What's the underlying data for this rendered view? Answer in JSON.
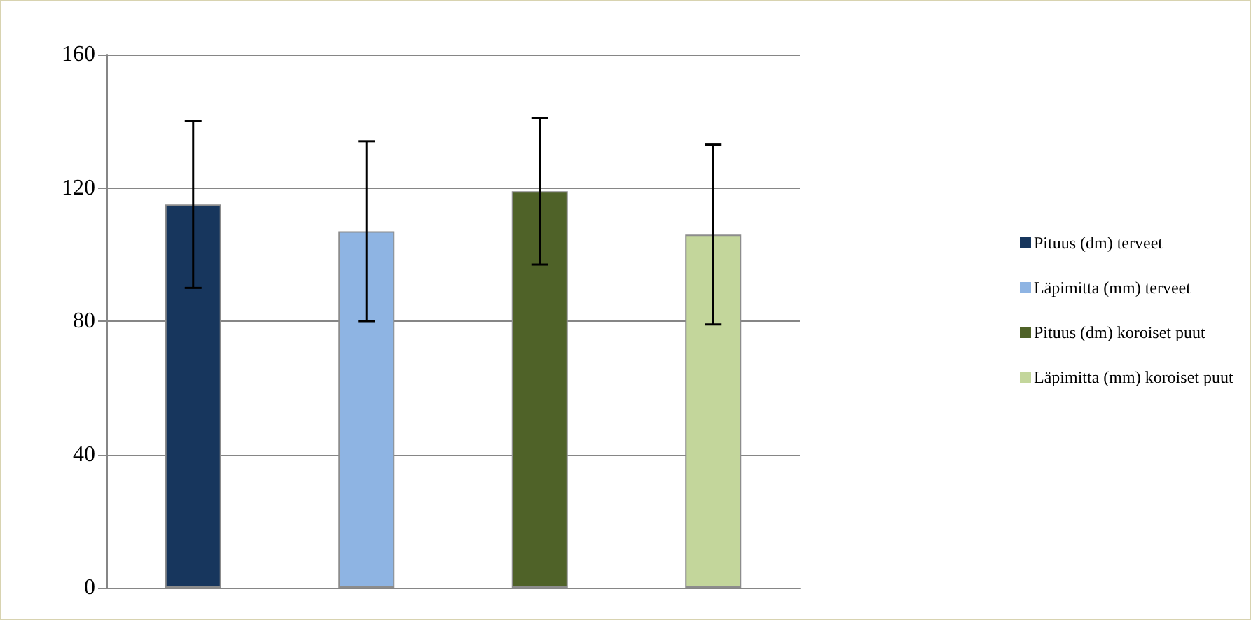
{
  "chart_data": {
    "type": "bar",
    "categories": [
      null
    ],
    "series": [
      {
        "name": "Pituus (dm) terveet",
        "color": "#17365d",
        "values": [
          115
        ],
        "errors": [
          [
            90,
            140
          ]
        ]
      },
      {
        "name": "Läpimitta (mm) terveet",
        "color": "#8eb4e3",
        "values": [
          107
        ],
        "errors": [
          [
            80,
            134
          ]
        ]
      },
      {
        "name": "Pituus (dm) koroiset puut",
        "color": "#4f6228",
        "values": [
          119
        ],
        "errors": [
          [
            97,
            141
          ]
        ]
      },
      {
        "name": "Läpimitta (mm) koroiset puut",
        "color": "#c3d69b",
        "values": [
          106
        ],
        "errors": [
          [
            79,
            133
          ]
        ]
      }
    ],
    "ylim": [
      0,
      160
    ],
    "yticks": [
      0,
      40,
      80,
      120,
      160
    ],
    "grid": "y",
    "legend": "right"
  }
}
